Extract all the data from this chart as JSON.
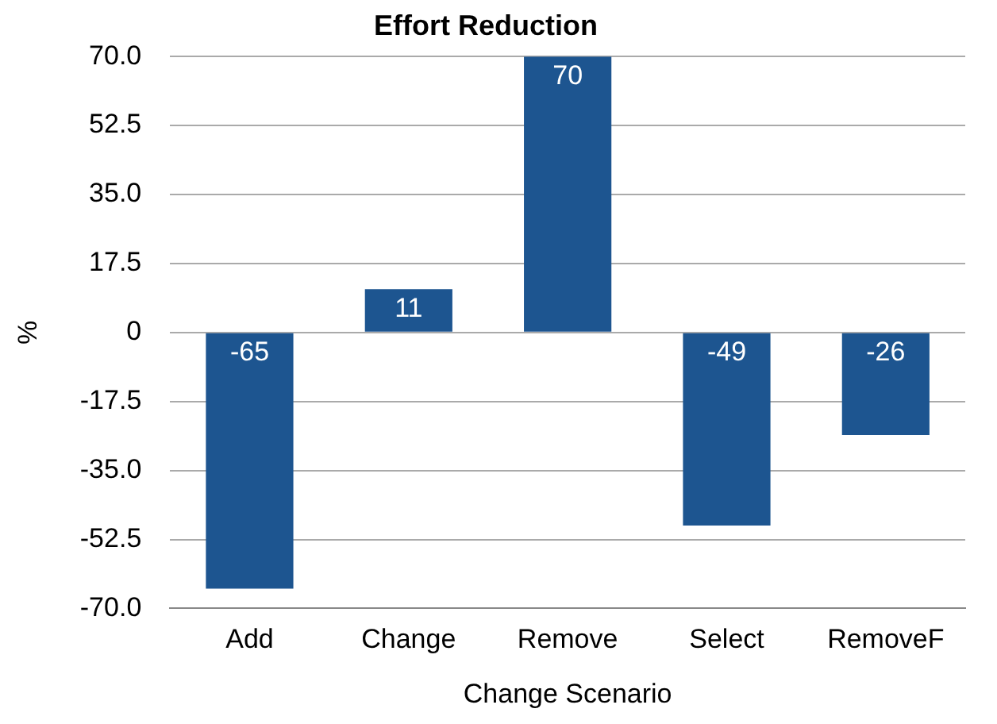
{
  "chart_data": {
    "type": "bar",
    "title": "Effort Reduction",
    "xlabel": "Change Scenario",
    "ylabel": "%",
    "categories": [
      "Add",
      "Change",
      "Remove",
      "Select",
      "RemoveF"
    ],
    "values": [
      -65,
      11,
      70,
      -49,
      -26
    ],
    "color": "#1d5590",
    "ylim": [
      -70,
      70
    ],
    "yticks": [
      {
        "value": -70,
        "label": "-70.0"
      },
      {
        "value": -52.5,
        "label": "-52.5"
      },
      {
        "value": -35,
        "label": "-35.0"
      },
      {
        "value": -17.5,
        "label": "-17.5"
      },
      0,
      {
        "value": 17.5,
        "label": "17.5"
      },
      {
        "value": 35,
        "label": "35.0"
      },
      {
        "value": 52.5,
        "label": "52.5"
      },
      {
        "value": 70,
        "label": "70.0"
      }
    ],
    "grid": "y",
    "data_labels": true
  }
}
